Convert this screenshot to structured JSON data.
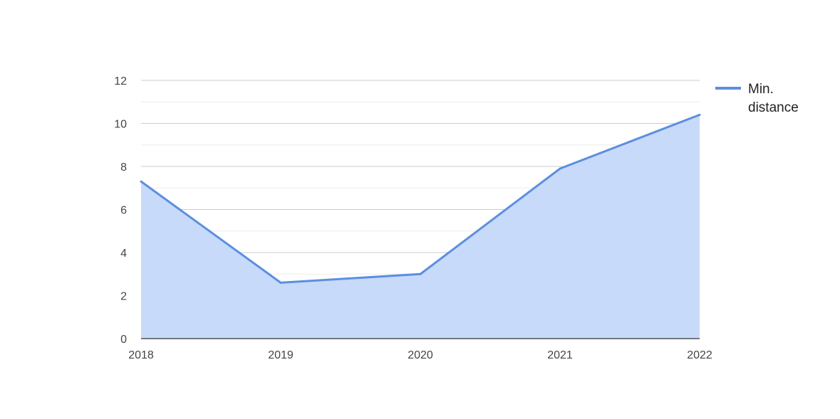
{
  "chart_data": {
    "type": "area",
    "title": "",
    "xlabel": "",
    "ylabel": "",
    "categories": [
      "2018",
      "2019",
      "2020",
      "2021",
      "2022"
    ],
    "series": [
      {
        "name": "Min. distance",
        "name_lines": [
          "Min.",
          "distance"
        ],
        "values": [
          7.3,
          2.6,
          3.0,
          7.9,
          10.4
        ],
        "color": "#5b8fe0",
        "fill": "#c8dafa"
      }
    ],
    "ylim": [
      0,
      12
    ],
    "yticks": [
      0,
      2,
      4,
      6,
      8,
      10,
      12
    ],
    "grid": true,
    "legend": "right",
    "colors": {
      "major_grid": "#cccccc",
      "minor_grid": "#ebebeb",
      "axis": "#333333"
    }
  }
}
